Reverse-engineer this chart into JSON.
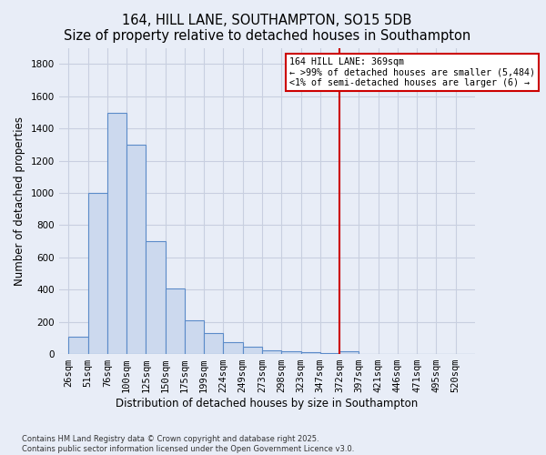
{
  "title": "164, HILL LANE, SOUTHAMPTON, SO15 5DB",
  "subtitle": "Size of property relative to detached houses in Southampton",
  "xlabel": "Distribution of detached houses by size in Southampton",
  "ylabel": "Number of detached properties",
  "bar_labels": [
    "26sqm",
    "51sqm",
    "76sqm",
    "100sqm",
    "125sqm",
    "150sqm",
    "175sqm",
    "199sqm",
    "224sqm",
    "249sqm",
    "273sqm",
    "298sqm",
    "323sqm",
    "347sqm",
    "372sqm",
    "397sqm",
    "421sqm",
    "446sqm",
    "471sqm",
    "495sqm",
    "520sqm"
  ],
  "bar_values": [
    110,
    1000,
    1500,
    1300,
    700,
    410,
    210,
    130,
    75,
    45,
    25,
    15,
    10,
    5,
    15,
    0,
    0,
    0,
    0,
    0,
    0
  ],
  "ylim": [
    0,
    1900
  ],
  "yticks": [
    0,
    200,
    400,
    600,
    800,
    1000,
    1200,
    1400,
    1600,
    1800
  ],
  "bar_color": "#ccd9ee",
  "bar_edge_color": "#5b8bc9",
  "vline_index": 14,
  "vline_color": "#cc0000",
  "legend_title": "164 HILL LANE: 369sqm",
  "legend_line1": "← >99% of detached houses are smaller (5,484)",
  "legend_line2": "<1% of semi-detached houses are larger (6) →",
  "legend_box_color": "#cc0000",
  "footnote1": "Contains HM Land Registry data © Crown copyright and database right 2025.",
  "footnote2": "Contains public sector information licensed under the Open Government Licence v3.0.",
  "bg_color": "#e8edf7",
  "grid_color": "#c8cfe0",
  "title_fontsize": 10.5,
  "axis_label_fontsize": 8.5,
  "tick_fontsize": 7.5
}
